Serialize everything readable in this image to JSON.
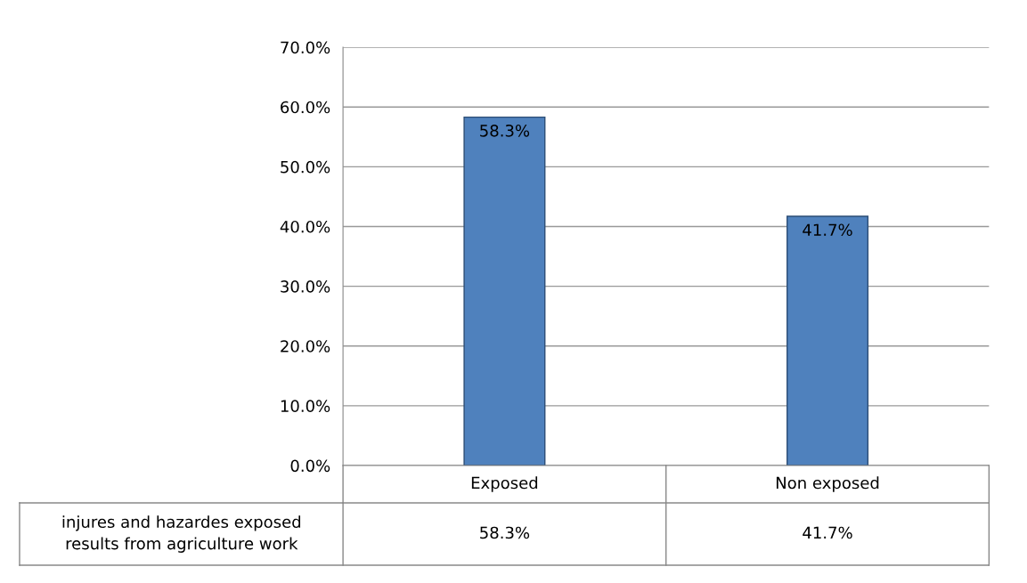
{
  "chart_data": {
    "type": "bar",
    "categories": [
      "Exposed",
      "Non exposed"
    ],
    "series": [
      {
        "name": "injures and hazardes exposed results from agriculture work",
        "color": "#4f81bd",
        "values": [
          58.3,
          41.7
        ],
        "value_labels": [
          "58.3%",
          "41.7%"
        ]
      }
    ],
    "ylim": [
      0,
      70
    ],
    "yticks": [
      {
        "value": 0,
        "label": "0.0%"
      },
      {
        "value": 10,
        "label": "10.0%"
      },
      {
        "value": 20,
        "label": "20.0%"
      },
      {
        "value": 30,
        "label": "30.0%"
      },
      {
        "value": 40,
        "label": "40.0%"
      },
      {
        "value": 50,
        "label": "50.0%"
      },
      {
        "value": 60,
        "label": "60.0%"
      },
      {
        "value": 70,
        "label": "70.0%"
      }
    ],
    "grid": "y",
    "legend": false
  }
}
